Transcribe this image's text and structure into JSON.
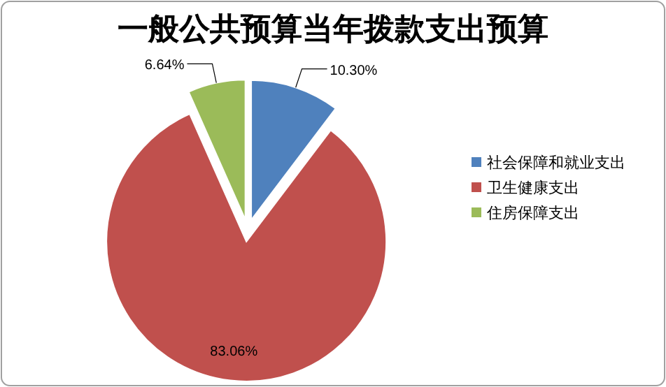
{
  "chart_data": {
    "type": "pie",
    "title": "一般公共预算当年拨款支出预算",
    "categories": [
      "社会保障和就业支出",
      "卫生健康支出",
      "住房保障支出"
    ],
    "values": [
      10.3,
      83.06,
      6.64
    ],
    "value_labels": [
      "10.30%",
      "83.06%",
      "6.64%"
    ],
    "colors": [
      "#4f81bd",
      "#c0504d",
      "#9bbb59"
    ],
    "legend": "right"
  }
}
